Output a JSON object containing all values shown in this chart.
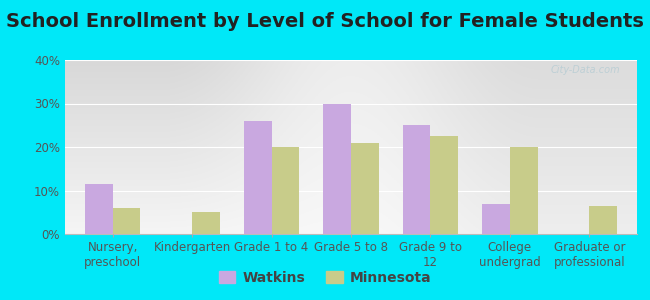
{
  "title": "School Enrollment by Level of School for Female Students",
  "categories": [
    "Nursery,\npreschool",
    "Kindergarten",
    "Grade 1 to 4",
    "Grade 5 to 8",
    "Grade 9 to\n12",
    "College\nundergrad",
    "Graduate or\nprofessional"
  ],
  "watkins": [
    11.5,
    0,
    26,
    30,
    25,
    7,
    0
  ],
  "minnesota": [
    6,
    5,
    20,
    21,
    22.5,
    20,
    6.5
  ],
  "watkins_color": "#c9a8e0",
  "minnesota_color": "#c8cc8a",
  "background_outer": "#00e8f8",
  "background_plot_top": "#f5f8ee",
  "background_plot_bottom": "#d8eddc",
  "ylim": [
    0,
    40
  ],
  "yticks": [
    0,
    10,
    20,
    30,
    40
  ],
  "ytick_labels": [
    "0%",
    "10%",
    "20%",
    "30%",
    "40%"
  ],
  "bar_width": 0.35,
  "legend_labels": [
    "Watkins",
    "Minnesota"
  ],
  "title_fontsize": 14,
  "tick_fontsize": 8.5,
  "legend_fontsize": 10
}
